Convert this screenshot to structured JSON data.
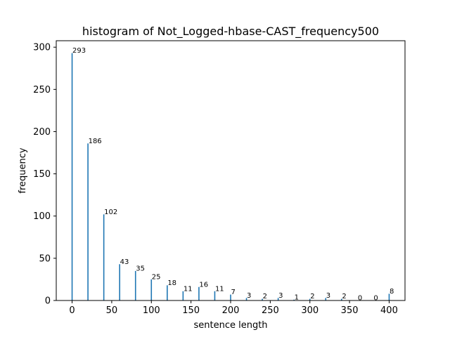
{
  "chart_data": {
    "type": "bar",
    "title": "histogram of Not_Logged-hbase-CAST_frequency500",
    "xlabel": "sentence length",
    "ylabel": "frequency",
    "x": [
      0,
      20,
      40,
      60,
      80,
      100,
      120,
      140,
      160,
      180,
      200,
      220,
      240,
      260,
      280,
      300,
      320,
      340,
      360,
      380,
      400
    ],
    "values": [
      293,
      186,
      102,
      43,
      35,
      25,
      18,
      11,
      16,
      11,
      7,
      3,
      2,
      3,
      1,
      2,
      3,
      2,
      0,
      0,
      8
    ],
    "xlim": [
      -20,
      420
    ],
    "ylim": [
      0,
      307.65
    ],
    "xticks": [
      0,
      50,
      100,
      150,
      200,
      250,
      300,
      350,
      400
    ],
    "yticks": [
      0,
      50,
      100,
      150,
      200,
      250,
      300
    ],
    "bar_color": "#1f77b4",
    "grid": false,
    "legend": "none"
  }
}
